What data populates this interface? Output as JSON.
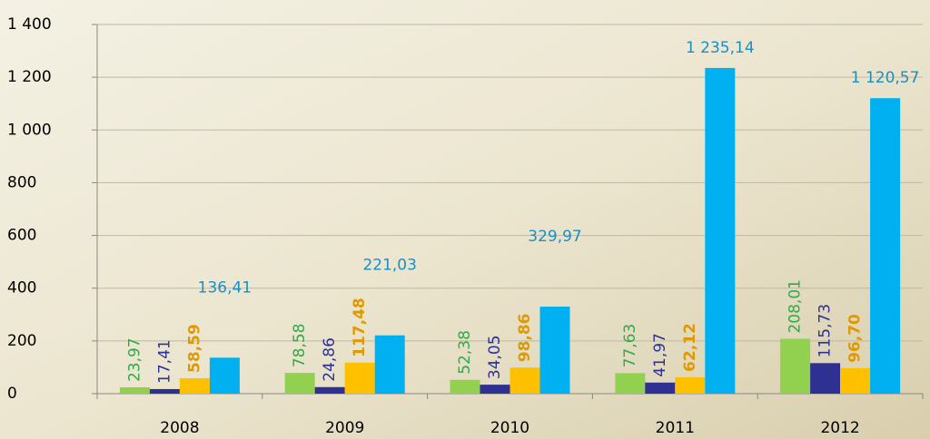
{
  "chart_data": {
    "type": "bar",
    "categories": [
      "2008",
      "2009",
      "2010",
      "2011",
      "2012"
    ],
    "series": [
      {
        "color": "#92d050",
        "label_color": "#2eaa4a",
        "label_weight": "normal",
        "label_rotate": true,
        "values": [
          23.97,
          78.58,
          52.38,
          77.63,
          208.01
        ],
        "value_labels": [
          "23,97",
          "78,58",
          "52,38",
          "77,63",
          "208,01"
        ]
      },
      {
        "color": "#2e3192",
        "label_color": "#2e3192",
        "label_weight": "normal",
        "label_rotate": true,
        "values": [
          17.41,
          24.86,
          34.05,
          41.97,
          115.73
        ],
        "value_labels": [
          "17,41",
          "24,86",
          "34,05",
          "41,97",
          "115,73"
        ]
      },
      {
        "color": "#ffc000",
        "label_color": "#e09a00",
        "label_weight": "bold",
        "label_rotate": true,
        "values": [
          58.59,
          117.48,
          98.86,
          62.12,
          96.7
        ],
        "value_labels": [
          "58,59",
          "117,48",
          "98,86",
          "62,12",
          "96,70"
        ]
      },
      {
        "color": "#00b0f0",
        "label_color": "#1a8fc4",
        "label_weight": "normal",
        "label_rotate": false,
        "values": [
          136.41,
          221.03,
          329.97,
          1235.14,
          1120.57
        ],
        "value_labels": [
          "136,41",
          "221,03",
          "329,97",
          "1 235,14",
          "1 120,57"
        ]
      }
    ],
    "ylim": [
      0,
      1400
    ],
    "yticks": [
      0,
      200,
      400,
      600,
      800,
      {
        "value": 1000,
        "label": "1 000"
      },
      {
        "value": 1200,
        "label": "1 200"
      },
      {
        "value": 1400,
        "label": "1 400"
      }
    ],
    "grid": true
  }
}
